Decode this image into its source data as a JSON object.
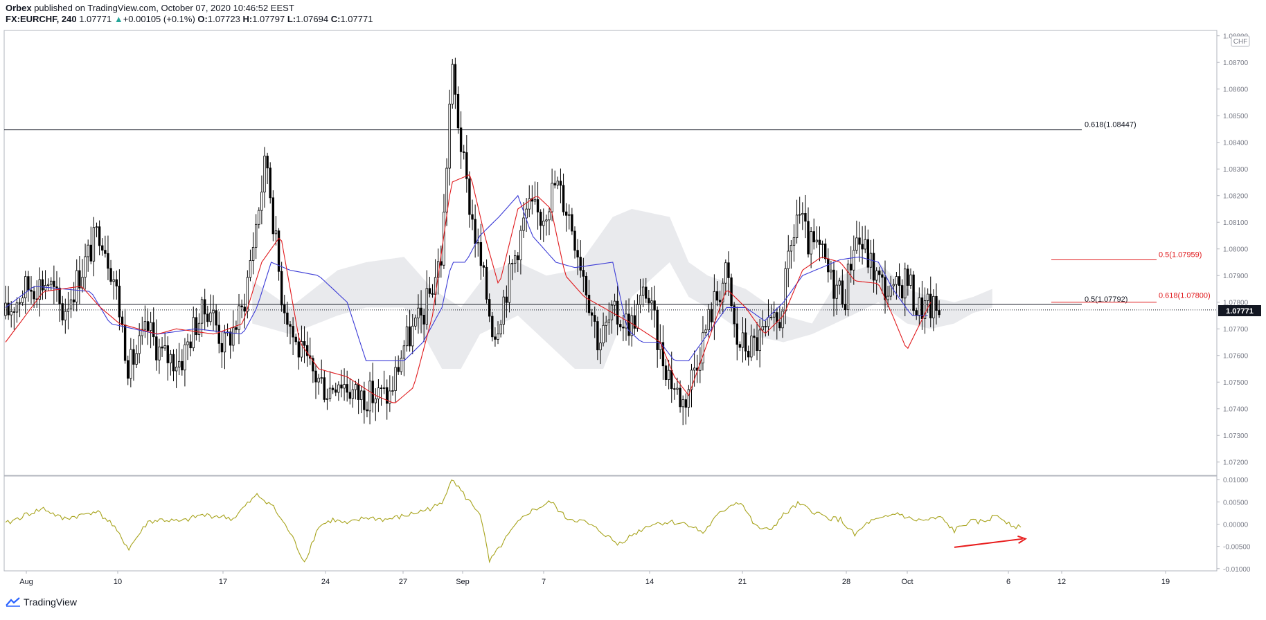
{
  "header": {
    "publisher": "Orbex",
    "published_on": "published on TradingView.com, October 07, 2020 10:46:52 EEST",
    "symbol": "FX:EURCHF, 240",
    "last": "1.07771",
    "change": "+0.00105 (+0.1%)",
    "o_label": "O:",
    "o": "1.07723",
    "h_label": "H:",
    "h": "1.07797",
    "l_label": "L:",
    "l": "1.07694",
    "c_label": "C:",
    "c": "1.07771"
  },
  "currency_badge": "CHF",
  "price_tag": "1.07771",
  "footer": {
    "brand": "TradingView"
  },
  "colors": {
    "candle": "#000000",
    "tenkan": "#e0191c",
    "kijun": "#3b3bd6",
    "cloud": "#e4e5e9",
    "oscillator": "#a7a31b",
    "arrow": "#e81c1c",
    "fib_red": "#e0191c",
    "fib_black": "#131722"
  },
  "chart_data": [
    {
      "type": "candlestick",
      "y_ticks": [
        "1.08800",
        "1.08700",
        "1.08600",
        "1.08500",
        "1.08400",
        "1.08300",
        "1.08200",
        "1.08100",
        "1.08000",
        "1.07900",
        "1.07800",
        "1.07700",
        "1.07600",
        "1.07500",
        "1.07400",
        "1.07300",
        "1.07200"
      ],
      "ylim": [
        1.0715,
        1.0882
      ],
      "x_ticks": [
        "Aug",
        "10",
        "17",
        "24",
        "27",
        "Sep",
        "7",
        "14",
        "21",
        "28",
        "Oct",
        "6",
        "12",
        "19"
      ],
      "annotations": [
        {
          "label": "0.618(1.08447)",
          "value": 1.08447,
          "color": "black"
        },
        {
          "label": "0.5(1.07959)",
          "value": 1.07959,
          "color": "red"
        },
        {
          "label": "0.5(1.07792)",
          "value": 1.07792,
          "color": "black"
        },
        {
          "label": "0.618(1.07800)",
          "value": 1.078,
          "color": "red"
        }
      ],
      "last_price": 1.07771,
      "close_anchors": [
        [
          0,
          1.0775
        ],
        [
          20,
          1.0785
        ],
        [
          45,
          1.0788
        ],
        [
          60,
          1.0776
        ],
        [
          80,
          1.0792
        ],
        [
          100,
          1.0808
        ],
        [
          115,
          1.0788
        ],
        [
          130,
          1.0755
        ],
        [
          150,
          1.077
        ],
        [
          165,
          1.076
        ],
        [
          185,
          1.0758
        ],
        [
          200,
          1.0772
        ],
        [
          215,
          1.0779
        ],
        [
          230,
          1.0763
        ],
        [
          250,
          1.0777
        ],
        [
          275,
          1.0835
        ],
        [
          290,
          1.0785
        ],
        [
          305,
          1.0765
        ],
        [
          320,
          1.0755
        ],
        [
          340,
          1.0747
        ],
        [
          350,
          1.0752
        ],
        [
          370,
          1.0745
        ],
        [
          390,
          1.0745
        ],
        [
          405,
          1.0745
        ],
        [
          420,
          1.0764
        ],
        [
          440,
          1.0775
        ],
        [
          460,
          1.0798
        ],
        [
          470,
          1.0868
        ],
        [
          485,
          1.0825
        ],
        [
          500,
          1.0795
        ],
        [
          515,
          1.0768
        ],
        [
          535,
          1.0795
        ],
        [
          550,
          1.0815
        ],
        [
          565,
          1.0812
        ],
        [
          580,
          1.0825
        ],
        [
          595,
          1.0812
        ],
        [
          610,
          1.079
        ],
        [
          625,
          1.0765
        ],
        [
          640,
          1.0775
        ],
        [
          660,
          1.0772
        ],
        [
          675,
          1.0785
        ],
        [
          690,
          1.0762
        ],
        [
          705,
          1.0748
        ],
        [
          715,
          1.0742
        ],
        [
          725,
          1.0755
        ],
        [
          745,
          1.0778
        ],
        [
          760,
          1.0791
        ],
        [
          770,
          1.0765
        ],
        [
          785,
          1.0763
        ],
        [
          800,
          1.0768
        ],
        [
          815,
          1.0772
        ],
        [
          835,
          1.0815
        ],
        [
          845,
          1.0802
        ],
        [
          860,
          1.0798
        ],
        [
          870,
          1.0788
        ],
        [
          885,
          1.0783
        ],
        [
          895,
          1.0805
        ],
        [
          905,
          1.08
        ],
        [
          920,
          1.0788
        ],
        [
          935,
          1.0782
        ],
        [
          950,
          1.079
        ],
        [
          960,
          1.0778
        ],
        [
          975,
          1.0778
        ],
        [
          985,
          1.0776
        ]
      ],
      "tenkan_anchors": [
        [
          0,
          1.0765
        ],
        [
          40,
          1.0784
        ],
        [
          80,
          1.0786
        ],
        [
          100,
          1.0778
        ],
        [
          120,
          1.0772
        ],
        [
          160,
          1.0768
        ],
        [
          180,
          1.077
        ],
        [
          220,
          1.0768
        ],
        [
          250,
          1.0772
        ],
        [
          270,
          1.0795
        ],
        [
          290,
          1.0805
        ],
        [
          310,
          1.0765
        ],
        [
          330,
          1.0755
        ],
        [
          360,
          1.0752
        ],
        [
          390,
          1.0745
        ],
        [
          410,
          1.0742
        ],
        [
          430,
          1.0748
        ],
        [
          450,
          1.0775
        ],
        [
          470,
          1.0825
        ],
        [
          490,
          1.0828
        ],
        [
          505,
          1.0805
        ],
        [
          520,
          1.0786
        ],
        [
          540,
          1.0815
        ],
        [
          560,
          1.082
        ],
        [
          575,
          1.0815
        ],
        [
          590,
          1.079
        ],
        [
          610,
          1.0782
        ],
        [
          630,
          1.0778
        ],
        [
          660,
          1.0772
        ],
        [
          690,
          1.0765
        ],
        [
          705,
          1.0752
        ],
        [
          720,
          1.0745
        ],
        [
          740,
          1.0765
        ],
        [
          760,
          1.0785
        ],
        [
          780,
          1.0778
        ],
        [
          800,
          1.0768
        ],
        [
          820,
          1.0775
        ],
        [
          840,
          1.0792
        ],
        [
          860,
          1.0797
        ],
        [
          880,
          1.0795
        ],
        [
          895,
          1.0788
        ],
        [
          920,
          1.0787
        ],
        [
          935,
          1.0775
        ],
        [
          950,
          1.0762
        ],
        [
          975,
          1.078
        ]
      ],
      "kijun_anchors": [
        [
          0,
          1.0778
        ],
        [
          30,
          1.0786
        ],
        [
          90,
          1.0784
        ],
        [
          110,
          1.0772
        ],
        [
          160,
          1.0768
        ],
        [
          200,
          1.077
        ],
        [
          250,
          1.0768
        ],
        [
          265,
          1.0778
        ],
        [
          280,
          1.0795
        ],
        [
          300,
          1.0792
        ],
        [
          330,
          1.079
        ],
        [
          360,
          1.078
        ],
        [
          380,
          1.0758
        ],
        [
          420,
          1.0758
        ],
        [
          440,
          1.0765
        ],
        [
          460,
          1.0778
        ],
        [
          470,
          1.0795
        ],
        [
          485,
          1.0795
        ],
        [
          500,
          1.0805
        ],
        [
          520,
          1.0812
        ],
        [
          540,
          1.082
        ],
        [
          555,
          1.0805
        ],
        [
          580,
          1.0795
        ],
        [
          600,
          1.0793
        ],
        [
          640,
          1.0795
        ],
        [
          655,
          1.077
        ],
        [
          670,
          1.0765
        ],
        [
          690,
          1.0765
        ],
        [
          705,
          1.0758
        ],
        [
          720,
          1.0758
        ],
        [
          740,
          1.0768
        ],
        [
          760,
          1.0778
        ],
        [
          780,
          1.0778
        ],
        [
          800,
          1.0773
        ],
        [
          820,
          1.078
        ],
        [
          840,
          1.079
        ],
        [
          860,
          1.0793
        ],
        [
          880,
          1.0796
        ],
        [
          900,
          1.0797
        ],
        [
          920,
          1.0795
        ],
        [
          935,
          1.0785
        ],
        [
          955,
          1.0775
        ],
        [
          975,
          1.0775
        ]
      ],
      "cloud_a_anchors": [
        [
          260,
          1.0788
        ],
        [
          300,
          1.0778
        ],
        [
          350,
          1.0792
        ],
        [
          380,
          1.0795
        ],
        [
          420,
          1.0797
        ],
        [
          450,
          1.0785
        ],
        [
          480,
          1.0778
        ],
        [
          510,
          1.0792
        ],
        [
          540,
          1.0795
        ],
        [
          570,
          1.079
        ],
        [
          600,
          1.0792
        ],
        [
          640,
          1.0812
        ],
        [
          660,
          1.0815
        ],
        [
          700,
          1.0812
        ],
        [
          720,
          1.0795
        ],
        [
          740,
          1.079
        ],
        [
          780,
          1.0785
        ],
        [
          820,
          1.0775
        ],
        [
          850,
          1.0772
        ],
        [
          880,
          1.079
        ],
        [
          920,
          1.0795
        ],
        [
          950,
          1.0785
        ],
        [
          975,
          1.0782
        ],
        [
          1000,
          1.078
        ],
        [
          1020,
          1.0782
        ],
        [
          1040,
          1.0785
        ]
      ],
      "cloud_b_anchors": [
        [
          260,
          1.0772
        ],
        [
          300,
          1.0768
        ],
        [
          350,
          1.0775
        ],
        [
          380,
          1.0778
        ],
        [
          420,
          1.0778
        ],
        [
          440,
          1.0768
        ],
        [
          460,
          1.0755
        ],
        [
          480,
          1.0755
        ],
        [
          500,
          1.0768
        ],
        [
          540,
          1.0775
        ],
        [
          570,
          1.0765
        ],
        [
          600,
          1.0755
        ],
        [
          630,
          1.0755
        ],
        [
          660,
          1.0782
        ],
        [
          700,
          1.0795
        ],
        [
          720,
          1.0782
        ],
        [
          740,
          1.0778
        ],
        [
          780,
          1.0768
        ],
        [
          820,
          1.0765
        ],
        [
          850,
          1.0768
        ],
        [
          880,
          1.0773
        ],
        [
          920,
          1.078
        ],
        [
          950,
          1.0772
        ],
        [
          975,
          1.077
        ],
        [
          1000,
          1.0772
        ],
        [
          1020,
          1.0776
        ],
        [
          1040,
          1.0778
        ]
      ]
    },
    {
      "type": "line",
      "y_ticks": [
        "0.01000",
        "0.00500",
        "0.00000",
        "-0.00500",
        "-0.01000"
      ],
      "ylim": [
        -0.0105,
        0.0108
      ],
      "values_anchors": [
        [
          0,
          0.0
        ],
        [
          20,
          0.002
        ],
        [
          40,
          0.0035
        ],
        [
          60,
          0.0012
        ],
        [
          80,
          0.002
        ],
        [
          95,
          0.003
        ],
        [
          110,
          0.0005
        ],
        [
          130,
          -0.0055
        ],
        [
          150,
          0.0005
        ],
        [
          165,
          0.001
        ],
        [
          185,
          0.0005
        ],
        [
          205,
          0.002
        ],
        [
          225,
          0.0018
        ],
        [
          240,
          0.0012
        ],
        [
          250,
          0.0035
        ],
        [
          265,
          0.0065
        ],
        [
          280,
          0.0045
        ],
        [
          300,
          -0.002
        ],
        [
          315,
          -0.0085
        ],
        [
          330,
          -0.0005
        ],
        [
          345,
          0.001
        ],
        [
          360,
          0.0
        ],
        [
          380,
          0.0015
        ],
        [
          400,
          0.001
        ],
        [
          420,
          0.0018
        ],
        [
          440,
          0.003
        ],
        [
          460,
          0.0045
        ],
        [
          470,
          0.0105
        ],
        [
          485,
          0.006
        ],
        [
          500,
          0.0025
        ],
        [
          510,
          -0.0085
        ],
        [
          520,
          -0.0055
        ],
        [
          535,
          -0.001
        ],
        [
          550,
          0.0025
        ],
        [
          575,
          0.005
        ],
        [
          590,
          0.0015
        ],
        [
          610,
          0.0005
        ],
        [
          630,
          -0.002
        ],
        [
          645,
          -0.0045
        ],
        [
          660,
          -0.0025
        ],
        [
          680,
          0.0
        ],
        [
          700,
          0.0005
        ],
        [
          720,
          0.0
        ],
        [
          735,
          -0.002
        ],
        [
          750,
          0.0018
        ],
        [
          765,
          0.0045
        ],
        [
          775,
          0.005
        ],
        [
          790,
          -0.0005
        ],
        [
          805,
          -0.0015
        ],
        [
          820,
          0.002
        ],
        [
          835,
          0.0045
        ],
        [
          850,
          0.003
        ],
        [
          865,
          0.0015
        ],
        [
          880,
          0.001
        ],
        [
          895,
          -0.0025
        ],
        [
          910,
          0.0005
        ],
        [
          925,
          0.0012
        ],
        [
          940,
          0.0025
        ],
        [
          955,
          0.001
        ],
        [
          970,
          0.0008
        ],
        [
          985,
          0.0015
        ],
        [
          1000,
          -0.0015
        ],
        [
          1015,
          0.0005
        ],
        [
          1030,
          0.0005
        ],
        [
          1045,
          0.002
        ],
        [
          1060,
          0.0
        ],
        [
          1070,
          -0.001
        ]
      ],
      "arrow": {
        "from": [
          1000,
          -0.0052
        ],
        "to": [
          1075,
          -0.0033
        ]
      }
    }
  ]
}
